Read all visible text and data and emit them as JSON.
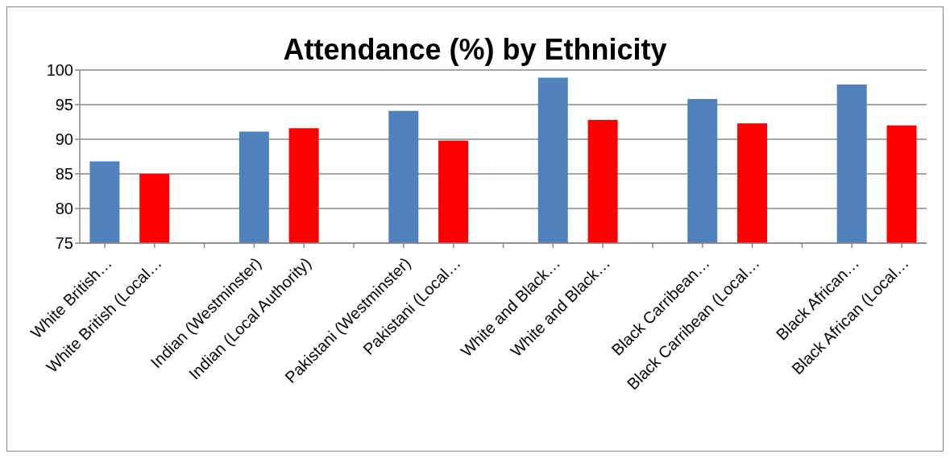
{
  "chart_data": {
    "type": "bar",
    "title": "Attendance (%) by Ethnicity",
    "categories": [
      "White British…",
      "White British (Local…",
      null,
      "Indian (Westminster)",
      "Indian (Local Authority)",
      null,
      "Pakistani (Westminster)",
      "Pakistani (Local…",
      null,
      "White and Black…",
      "White and Black…",
      null,
      "Black Carribean…",
      "Black Carribean (Local…",
      null,
      "Black African…",
      "Black African (Local…"
    ],
    "values": [
      86.8,
      85.0,
      null,
      91.1,
      91.6,
      null,
      94.1,
      89.8,
      null,
      98.9,
      92.8,
      null,
      95.8,
      92.3,
      null,
      97.9,
      92.0
    ],
    "colors": [
      "#4f81bd",
      "#ff0000",
      null,
      "#4f81bd",
      "#ff0000",
      null,
      "#4f81bd",
      "#ff0000",
      null,
      "#4f81bd",
      "#ff0000",
      null,
      "#4f81bd",
      "#ff0000",
      null,
      "#4f81bd",
      "#ff0000"
    ],
    "ylim": [
      75,
      100
    ],
    "yticks": [
      75,
      80,
      85,
      90,
      95,
      100
    ],
    "grid": "y"
  }
}
